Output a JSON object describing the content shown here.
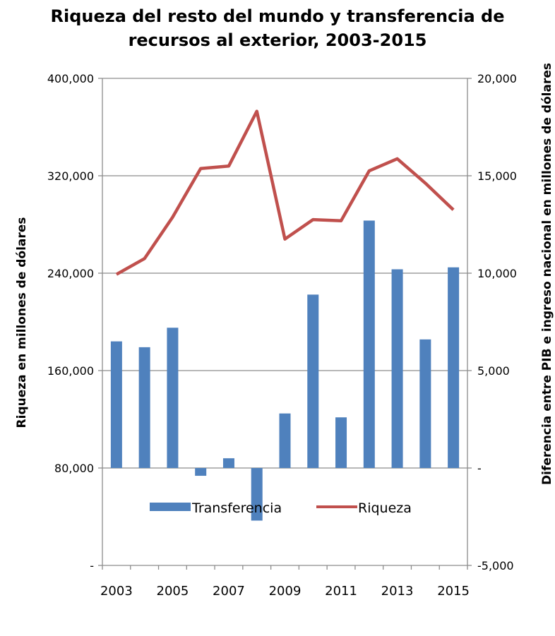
{
  "chart_data": {
    "type": "bar+line",
    "title_line1": "Riqueza del resto del mundo y transferencia de",
    "title_line2": "recursos al exterior, 2003-2015",
    "ylabel_left": "Riqueza en millones de dólares",
    "ylabel_right": "Diferencia entre PIB e ingreso nacional en millones de dólares",
    "left_ticks": [
      "-",
      "80,000",
      "160,000",
      "240,000",
      "320,000",
      "400,000"
    ],
    "right_ticks": [
      "-5,000",
      "-",
      "5,000",
      "10,000",
      "15,000",
      "20,000"
    ],
    "x_tick_labels": [
      "2003",
      "2005",
      "2007",
      "2009",
      "2011",
      "2013",
      "2015"
    ],
    "ylim_left": [
      0,
      400000
    ],
    "ylim_right": [
      -5000,
      20000
    ],
    "years": [
      2003,
      2004,
      2005,
      2006,
      2007,
      2008,
      2009,
      2010,
      2011,
      2012,
      2013,
      2014,
      2015
    ],
    "series": [
      {
        "name": "Transferencia",
        "type": "bar",
        "axis": "right",
        "color": "#4F81BD",
        "values": [
          6500,
          6200,
          7200,
          -400,
          500,
          -2700,
          2800,
          8900,
          2600,
          12700,
          10200,
          6600,
          10300
        ]
      },
      {
        "name": "Riqueza",
        "type": "line",
        "axis": "left",
        "color": "#C0504D",
        "values": [
          239000,
          252000,
          286000,
          326000,
          328000,
          373000,
          268000,
          284000,
          283000,
          324000,
          334000,
          314000,
          292000
        ]
      }
    ],
    "grid": "horizontal",
    "legend_position": "bottom"
  }
}
